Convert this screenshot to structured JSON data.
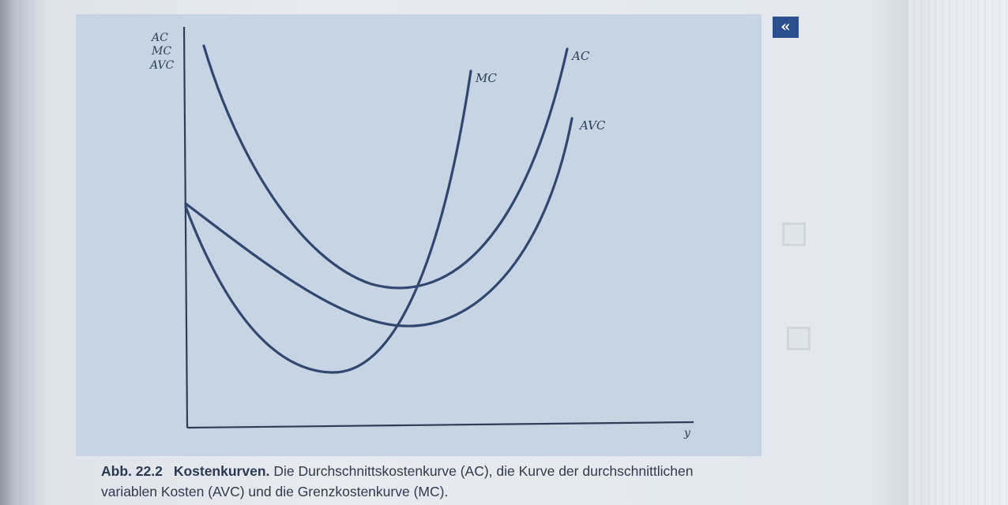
{
  "figure": {
    "y_axis_labels": [
      "AC",
      "MC",
      "AVC"
    ],
    "x_axis_label": "y",
    "curve_labels": {
      "mc": "MC",
      "ac": "AC",
      "avc": "AVC"
    }
  },
  "chart_data": {
    "type": "line",
    "series": [
      {
        "name": "MC",
        "description": "U-shaped curve starting at the intercept, falling to a minimum, then rising steeply and crossing AVC and AC at their minima"
      },
      {
        "name": "AC",
        "description": "U-shaped curve starting high, minimum to the right of the AVC minimum"
      },
      {
        "name": "AVC",
        "description": "U-shaped curve starting at the same intercept as MC, minimum below AC"
      }
    ],
    "xlabel": "y",
    "ylabel": "AC MC AVC",
    "grid": false,
    "legend": "none"
  },
  "nav_mark": {
    "glyph": "«"
  },
  "caption": {
    "label": "Abb. 22.2",
    "title": "Kostenkurven.",
    "text": "Die Durchschnittskostenkurve (AC), die Kurve der durchschnittlichen variablen Kosten (AVC) und die Grenzkostenkurve (MC)."
  }
}
